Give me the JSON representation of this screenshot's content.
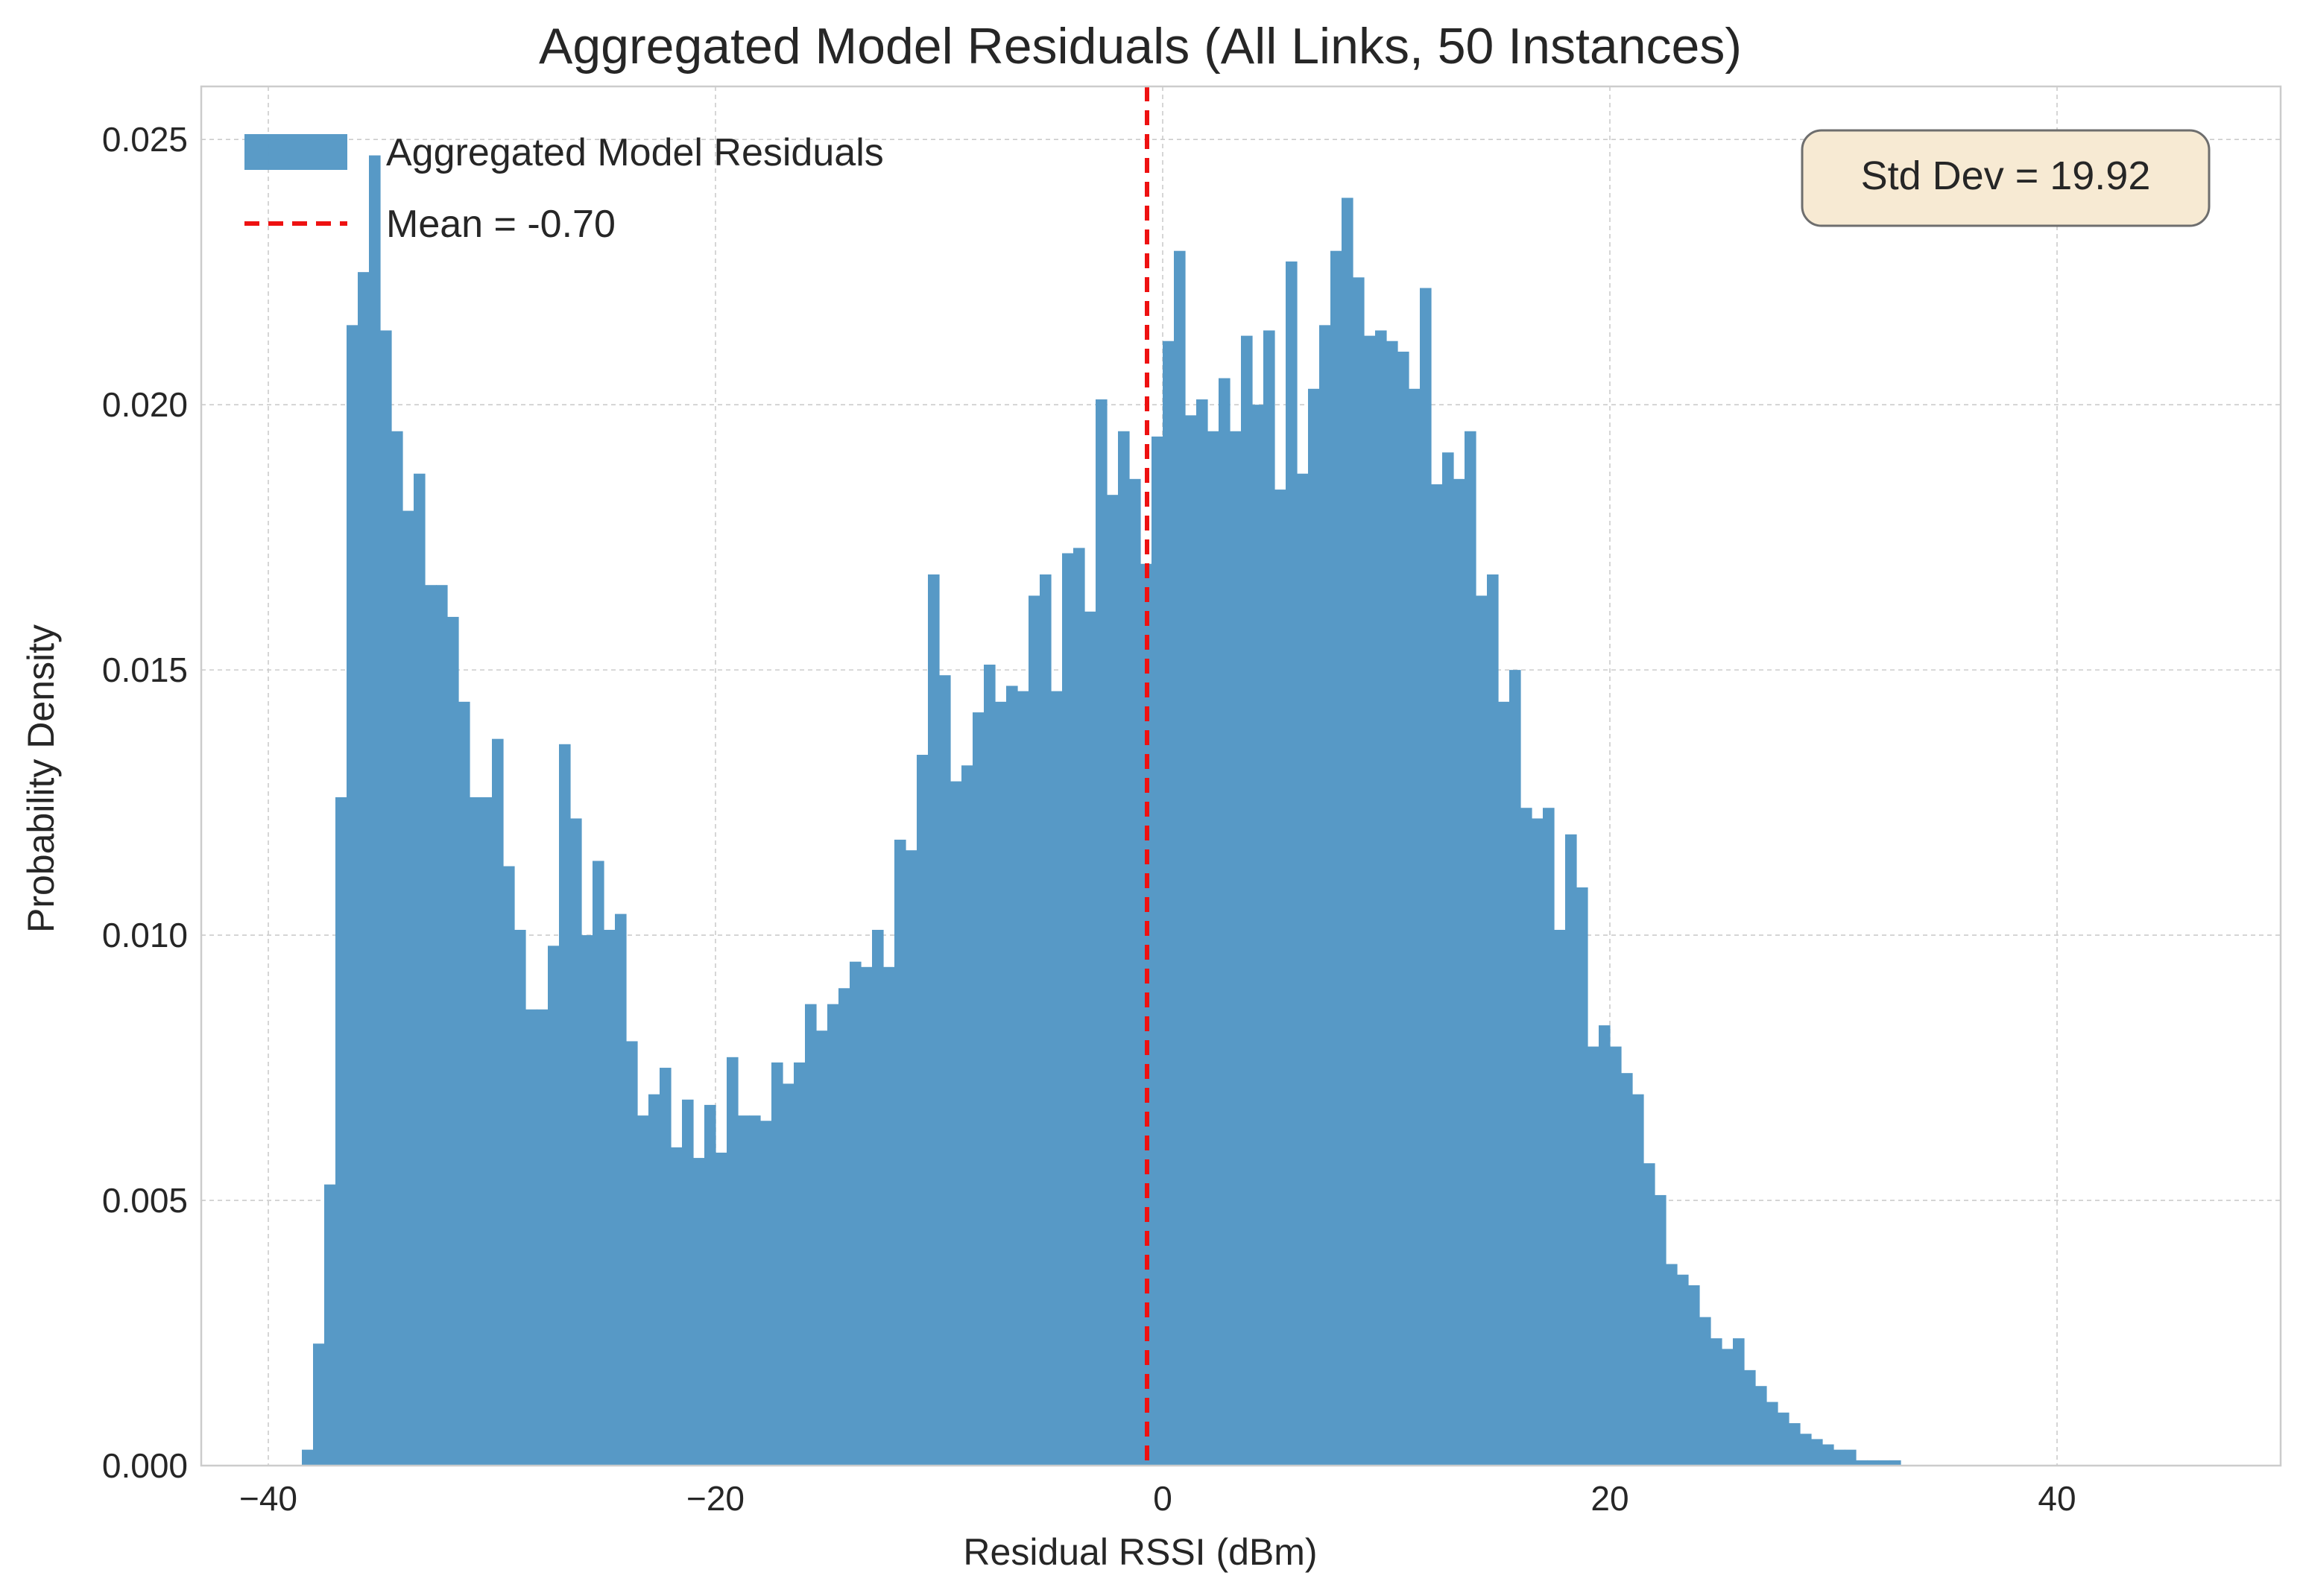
{
  "chart_data": {
    "type": "histogram",
    "title": "Aggregated Model Residuals (All Links, 50 Instances)",
    "xlabel": "Residual RSSI (dBm)",
    "ylabel": "Probability Density",
    "xlim": [
      -43,
      50
    ],
    "ylim": [
      0,
      0.026
    ],
    "grid": true,
    "x_ticks": [
      {
        "value": -40,
        "label": "−40"
      },
      {
        "value": -20,
        "label": "−20"
      },
      {
        "value": 0,
        "label": "0"
      },
      {
        "value": 20,
        "label": "20"
      },
      {
        "value": 40,
        "label": "40"
      }
    ],
    "y_ticks": [
      {
        "value": 0,
        "label": "0.000"
      },
      {
        "value": 0.005,
        "label": "0.005"
      },
      {
        "value": 0.01,
        "label": "0.010"
      },
      {
        "value": 0.015,
        "label": "0.015"
      },
      {
        "value": 0.02,
        "label": "0.020"
      },
      {
        "value": 0.025,
        "label": "0.025"
      }
    ],
    "bins": {
      "start": -38.5,
      "width": 0.5,
      "density": [
        0.0003,
        0.0023,
        0.0053,
        0.0126,
        0.0215,
        0.0225,
        0.0247,
        0.0214,
        0.0195,
        0.018,
        0.0187,
        0.0166,
        0.0166,
        0.016,
        0.0144,
        0.0126,
        0.0126,
        0.0137,
        0.0113,
        0.0101,
        0.0086,
        0.0086,
        0.0098,
        0.0136,
        0.0122,
        0.01,
        0.0114,
        0.0101,
        0.0104,
        0.008,
        0.0066,
        0.007,
        0.0075,
        0.006,
        0.0069,
        0.0058,
        0.0068,
        0.0059,
        0.0077,
        0.0066,
        0.0066,
        0.0065,
        0.0076,
        0.0072,
        0.0076,
        0.0087,
        0.0082,
        0.0087,
        0.009,
        0.0095,
        0.0094,
        0.0101,
        0.0094,
        0.0118,
        0.0116,
        0.0134,
        0.0168,
        0.0149,
        0.0129,
        0.0132,
        0.0142,
        0.0151,
        0.0144,
        0.0147,
        0.0146,
        0.0164,
        0.0168,
        0.0146,
        0.0172,
        0.0173,
        0.0161,
        0.0201,
        0.0183,
        0.0195,
        0.0186,
        0.017,
        0.0194,
        0.0212,
        0.0229,
        0.0198,
        0.0201,
        0.0195,
        0.0205,
        0.0195,
        0.0213,
        0.02,
        0.0214,
        0.0184,
        0.0227,
        0.0187,
        0.0203,
        0.0215,
        0.0229,
        0.0239,
        0.0224,
        0.0213,
        0.0214,
        0.0212,
        0.021,
        0.0203,
        0.0222,
        0.0185,
        0.0191,
        0.0186,
        0.0195,
        0.0164,
        0.0168,
        0.0144,
        0.015,
        0.0124,
        0.0122,
        0.0124,
        0.0101,
        0.0119,
        0.0109,
        0.0079,
        0.0083,
        0.0079,
        0.0074,
        0.007,
        0.0057,
        0.0051,
        0.0038,
        0.0036,
        0.0034,
        0.0028,
        0.0024,
        0.0022,
        0.0024,
        0.0018,
        0.0015,
        0.0012,
        0.001,
        0.0008,
        0.0006,
        0.0005,
        0.0004,
        0.0003,
        0.0003,
        0.0001,
        0.0001,
        0.0001,
        0.0001,
        0.0,
        0.0,
        0.0
      ]
    },
    "series": [
      {
        "name": "Aggregated Model Residuals",
        "type": "bar",
        "color": "#5799c6"
      },
      {
        "name": "Mean = -0.70",
        "type": "vline",
        "x": -0.7,
        "color": "#ee1111",
        "style": "dashed"
      }
    ],
    "legend_position": "top-left",
    "annotation": {
      "text": "Std Dev = 19.92",
      "position": "top-right",
      "background": "#f7ead3"
    }
  }
}
